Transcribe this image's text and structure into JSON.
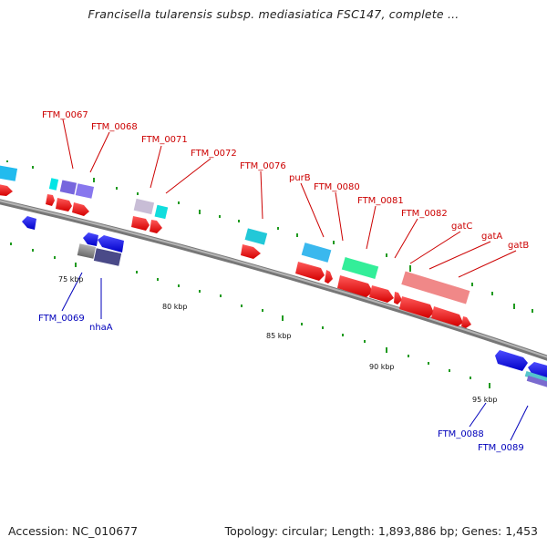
{
  "title": "Francisella tularensis subsp. mediasiatica FSC147, complete ...",
  "footer": {
    "accession": "Accession: NC_010677",
    "summary": "Topology: circular; Length: 1,893,886 bp; Genes: 1,453"
  },
  "colors": {
    "forward_cds": "#ff1a1a",
    "reverse_cds": "#1a1aff",
    "label_forward": "#cc0000",
    "label_reverse": "#0000bb",
    "backbone": "#8a8a8a",
    "tick": "#1f9a1f"
  },
  "scale_labels": [
    {
      "text": "75 kbp",
      "kbp": 75
    },
    {
      "text": "80 kbp",
      "kbp": 80
    },
    {
      "text": "85 kbp",
      "kbp": 85
    },
    {
      "text": "90 kbp",
      "kbp": 90
    },
    {
      "text": "95 kbp",
      "kbp": 95
    }
  ],
  "gene_labels_forward": [
    "FTM_0067",
    "FTM_0068",
    "FTM_0071",
    "FTM_0072",
    "FTM_0076",
    "purB",
    "FTM_0080",
    "FTM_0081",
    "FTM_0082",
    "gatC",
    "gatA",
    "gatB"
  ],
  "gene_labels_reverse": [
    "FTM_0069",
    "nhaA",
    "FTM_0088",
    "FTM_0089"
  ]
}
